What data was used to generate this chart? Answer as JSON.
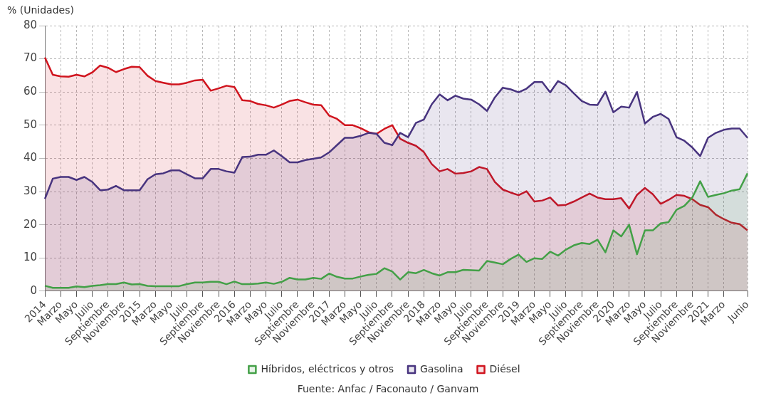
{
  "chart_data": {
    "type": "area",
    "ylabel": "% (Unidades)",
    "categories": [
      "2014",
      null,
      "Marzo",
      null,
      "Mayo",
      null,
      "Julio",
      null,
      "Septiembre",
      null,
      "Noviembre",
      null,
      "2015",
      null,
      "Marzo",
      null,
      "Mayo",
      null,
      "Julio",
      null,
      "Septiembre",
      null,
      "Noviembre",
      null,
      "2016",
      null,
      "Marzo",
      null,
      "Mayo",
      null,
      "Julio",
      null,
      "Septiembre",
      null,
      "Noviembre",
      null,
      "2017",
      null,
      "Marzo",
      null,
      "Mayo",
      null,
      "Julio",
      null,
      "Septiembre",
      null,
      "Noviembre",
      null,
      "2018",
      null,
      "Marzo",
      null,
      "Mayo",
      null,
      "Julio",
      null,
      "Septiembre",
      null,
      "Noviembre",
      null,
      "2019",
      null,
      "Marzo",
      null,
      "Mayo",
      null,
      "Julio",
      null,
      "Septiembre",
      null,
      "Noviembre",
      null,
      "2020",
      null,
      "Marzo",
      null,
      "Mayo",
      null,
      "Julio",
      null,
      "Septiembre",
      null,
      "Noviembre",
      null,
      "2021",
      null,
      "Marzo",
      null,
      null,
      "Junio"
    ],
    "series": [
      {
        "name": "Híbridos, eléctricos y otros",
        "color": "#43a047",
        "values": [
          1.6,
          1,
          1,
          1,
          1.4,
          1.2,
          1.6,
          1.8,
          2.1,
          2.1,
          2.6,
          2,
          2.1,
          1.6,
          1.5,
          1.5,
          1.5,
          1.5,
          2.1,
          2.6,
          2.6,
          2.8,
          2.8,
          2.1,
          2.9,
          2.1,
          2.1,
          2.3,
          2.6,
          2.2,
          2.8,
          4,
          3.5,
          3.5,
          4,
          3.7,
          5.3,
          4.3,
          3.8,
          3.8,
          4.4,
          4.9,
          5.2,
          6.9,
          5.9,
          3.5,
          5.7,
          5.4,
          6.4,
          5.4,
          4.7,
          5.7,
          5.7,
          6.4,
          6.3,
          6.2,
          9.1,
          8.6,
          8.1,
          9.7,
          11,
          8.8,
          9.9,
          9.7,
          11.9,
          10.7,
          12.5,
          13.8,
          14.5,
          14.2,
          15.5,
          11.7,
          18.3,
          16.5,
          20,
          11.1,
          18.3,
          18.3,
          20.4,
          20.8,
          24.5,
          25.7,
          28.2,
          33.1,
          28.4,
          29,
          29.5,
          30.3,
          30.7,
          35.5
        ]
      },
      {
        "name": "Gasolina",
        "color": "#48347f",
        "values": [
          27.8,
          33.9,
          34.4,
          34.4,
          33.5,
          34.4,
          32.9,
          30.4,
          30.6,
          31.7,
          30.4,
          30.4,
          30.4,
          33.7,
          35.2,
          35.5,
          36.4,
          36.4,
          35.2,
          34,
          34,
          36.8,
          36.8,
          36.1,
          35.7,
          40.4,
          40.5,
          41.1,
          41.1,
          42.4,
          40.7,
          38.8,
          38.8,
          39.5,
          39.9,
          40.3,
          41.8,
          44,
          46.2,
          46.2,
          46.8,
          47.7,
          47.4,
          44.7,
          44,
          47.7,
          46.4,
          50.7,
          51.7,
          56.3,
          59.3,
          57.5,
          58.9,
          58,
          57.7,
          56.3,
          54.3,
          58.4,
          61.3,
          60.8,
          59.9,
          61,
          63,
          63,
          59.9,
          63.3,
          62,
          59.6,
          57.3,
          56.2,
          56.1,
          60.1,
          53.9,
          55.6,
          55.3,
          60,
          50.5,
          52.5,
          53.4,
          51.9,
          46.4,
          45.3,
          43.3,
          40.7,
          46.2,
          47.7,
          48.6,
          49,
          49,
          46.2
        ]
      },
      {
        "name": "Diésel",
        "color": "#d0141e",
        "values": [
          70.4,
          65.2,
          64.7,
          64.6,
          65.2,
          64.7,
          65.9,
          68,
          67.3,
          66,
          66.9,
          67.6,
          67.5,
          64.9,
          63.3,
          62.8,
          62.3,
          62.3,
          62.8,
          63.5,
          63.7,
          60.4,
          61.1,
          61.9,
          61.5,
          57.5,
          57.3,
          56.4,
          56,
          55.3,
          56.2,
          57.3,
          57.7,
          56.9,
          56.2,
          56,
          52.9,
          51.9,
          50,
          50,
          49.1,
          47.9,
          47.4,
          48.9,
          50,
          45.9,
          44.7,
          43.8,
          41.9,
          38.3,
          36.1,
          36.8,
          35.4,
          35.6,
          36.1,
          37.4,
          36.8,
          32.9,
          30.6,
          29.7,
          28.9,
          30.1,
          27,
          27.3,
          28.2,
          25.8,
          26,
          27,
          28.2,
          29.4,
          28.2,
          27.7,
          27.7,
          28,
          24.9,
          29,
          31.1,
          29.2,
          26.3,
          27.5,
          29,
          28.7,
          27.7,
          26,
          25.3,
          23,
          21.7,
          20.6,
          20.2,
          18.3
        ]
      }
    ],
    "ylim": [
      0,
      80
    ],
    "yticks": [
      0,
      10,
      20,
      30,
      40,
      50,
      60,
      70,
      80
    ],
    "grid": true,
    "legend": "bottom",
    "marker": "none",
    "line_style": "solid",
    "annotations": [
      "Fuente: Anfac / Faconauto / Ganvam"
    ]
  }
}
